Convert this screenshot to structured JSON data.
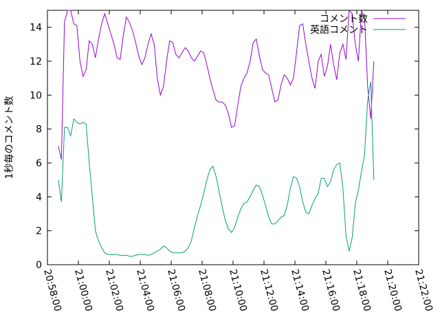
{
  "chart_data": {
    "type": "line",
    "ylabel": "1秒毎のコメント数",
    "ylim": [
      0,
      15
    ],
    "yticks": [
      0,
      2,
      4,
      6,
      8,
      10,
      12,
      14
    ],
    "xlim_minutes": [
      0,
      24
    ],
    "xtick_labels": [
      "20:58:00",
      "21:00:00",
      "21:02:00",
      "21:04:00",
      "21:06:00",
      "21:08:00",
      "21:10:00",
      "21:12:00",
      "21:14:00",
      "21:16:00",
      "21:18:00",
      "21:20:00",
      "21:22:00"
    ],
    "legend_position": "top-right",
    "grid": false,
    "series": [
      {
        "name": "コメント数",
        "color": "#9400d3",
        "points": [
          [
            0.7,
            7.0
          ],
          [
            0.9,
            6.2
          ],
          [
            1.1,
            14.3
          ],
          [
            1.3,
            15.0
          ],
          [
            1.5,
            15.0
          ],
          [
            1.7,
            14.2
          ],
          [
            1.9,
            14.1
          ],
          [
            2.1,
            12.0
          ],
          [
            2.3,
            11.1
          ],
          [
            2.5,
            11.5
          ],
          [
            2.7,
            13.2
          ],
          [
            2.9,
            13.0
          ],
          [
            3.1,
            12.2
          ],
          [
            3.3,
            13.3
          ],
          [
            3.5,
            14.2
          ],
          [
            3.7,
            14.8
          ],
          [
            3.9,
            14.2
          ],
          [
            4.1,
            13.6
          ],
          [
            4.3,
            13.0
          ],
          [
            4.5,
            12.2
          ],
          [
            4.7,
            12.1
          ],
          [
            4.9,
            13.5
          ],
          [
            5.1,
            14.6
          ],
          [
            5.3,
            14.3
          ],
          [
            5.5,
            13.8
          ],
          [
            5.7,
            13.1
          ],
          [
            5.9,
            12.3
          ],
          [
            6.1,
            11.8
          ],
          [
            6.3,
            12.2
          ],
          [
            6.5,
            13.0
          ],
          [
            6.7,
            13.6
          ],
          [
            6.9,
            13.0
          ],
          [
            7.1,
            11.0
          ],
          [
            7.3,
            10.0
          ],
          [
            7.5,
            10.5
          ],
          [
            7.7,
            12.0
          ],
          [
            7.9,
            13.2
          ],
          [
            8.1,
            13.1
          ],
          [
            8.3,
            12.4
          ],
          [
            8.5,
            12.2
          ],
          [
            8.7,
            12.5
          ],
          [
            8.9,
            12.8
          ],
          [
            9.1,
            12.6
          ],
          [
            9.3,
            12.2
          ],
          [
            9.5,
            12.0
          ],
          [
            9.7,
            12.3
          ],
          [
            9.9,
            12.6
          ],
          [
            10.1,
            12.5
          ],
          [
            10.3,
            11.8
          ],
          [
            10.5,
            11.0
          ],
          [
            10.7,
            10.3
          ],
          [
            10.9,
            9.7
          ],
          [
            11.1,
            9.6
          ],
          [
            11.3,
            9.6
          ],
          [
            11.5,
            9.4
          ],
          [
            11.7,
            8.9
          ],
          [
            11.9,
            8.1
          ],
          [
            12.1,
            8.2
          ],
          [
            12.3,
            9.4
          ],
          [
            12.5,
            10.5
          ],
          [
            12.7,
            11.0
          ],
          [
            12.9,
            11.3
          ],
          [
            13.1,
            12.0
          ],
          [
            13.3,
            13.1
          ],
          [
            13.5,
            13.3
          ],
          [
            13.7,
            12.3
          ],
          [
            13.9,
            11.5
          ],
          [
            14.1,
            11.3
          ],
          [
            14.3,
            11.2
          ],
          [
            14.5,
            10.4
          ],
          [
            14.7,
            9.6
          ],
          [
            14.9,
            9.7
          ],
          [
            15.1,
            10.6
          ],
          [
            15.3,
            11.2
          ],
          [
            15.5,
            11.0
          ],
          [
            15.7,
            10.6
          ],
          [
            15.9,
            11.0
          ],
          [
            16.1,
            12.5
          ],
          [
            16.3,
            14.1
          ],
          [
            16.5,
            14.2
          ],
          [
            16.7,
            13.0
          ],
          [
            16.9,
            12.0
          ],
          [
            17.1,
            11.0
          ],
          [
            17.3,
            10.4
          ],
          [
            17.5,
            12.0
          ],
          [
            17.7,
            12.4
          ],
          [
            17.9,
            11.1
          ],
          [
            18.1,
            11.7
          ],
          [
            18.3,
            13.0
          ],
          [
            18.5,
            11.8
          ],
          [
            18.7,
            10.9
          ],
          [
            18.9,
            12.5
          ],
          [
            19.1,
            13.0
          ],
          [
            19.3,
            12.1
          ],
          [
            19.5,
            15.0
          ],
          [
            19.7,
            14.8
          ],
          [
            19.9,
            13.0
          ],
          [
            20.1,
            12.0
          ],
          [
            20.3,
            15.0
          ],
          [
            20.5,
            14.5
          ],
          [
            20.7,
            10.5
          ],
          [
            20.9,
            8.6
          ],
          [
            21.1,
            12.0
          ]
        ]
      },
      {
        "name": "英語コメント",
        "color": "#009e73",
        "points": [
          [
            0.7,
            5.0
          ],
          [
            0.9,
            3.7
          ],
          [
            1.1,
            8.1
          ],
          [
            1.3,
            8.1
          ],
          [
            1.5,
            7.6
          ],
          [
            1.7,
            8.6
          ],
          [
            1.9,
            8.4
          ],
          [
            2.1,
            8.3
          ],
          [
            2.3,
            8.4
          ],
          [
            2.5,
            8.3
          ],
          [
            2.7,
            6.0
          ],
          [
            2.9,
            4.0
          ],
          [
            3.1,
            2.0
          ],
          [
            3.3,
            1.4
          ],
          [
            3.5,
            1.0
          ],
          [
            3.7,
            0.7
          ],
          [
            3.9,
            0.6
          ],
          [
            4.1,
            0.6
          ],
          [
            4.3,
            0.6
          ],
          [
            4.5,
            0.6
          ],
          [
            4.7,
            0.55
          ],
          [
            4.9,
            0.55
          ],
          [
            5.1,
            0.55
          ],
          [
            5.3,
            0.5
          ],
          [
            5.5,
            0.5
          ],
          [
            5.7,
            0.55
          ],
          [
            5.9,
            0.6
          ],
          [
            6.1,
            0.6
          ],
          [
            6.3,
            0.6
          ],
          [
            6.5,
            0.55
          ],
          [
            6.7,
            0.6
          ],
          [
            6.9,
            0.7
          ],
          [
            7.1,
            0.8
          ],
          [
            7.3,
            0.9
          ],
          [
            7.5,
            1.1
          ],
          [
            7.7,
            1.0
          ],
          [
            7.9,
            0.8
          ],
          [
            8.1,
            0.7
          ],
          [
            8.3,
            0.7
          ],
          [
            8.5,
            0.7
          ],
          [
            8.7,
            0.7
          ],
          [
            8.9,
            0.8
          ],
          [
            9.1,
            1.0
          ],
          [
            9.3,
            1.4
          ],
          [
            9.5,
            2.2
          ],
          [
            9.7,
            2.9
          ],
          [
            9.9,
            3.5
          ],
          [
            10.1,
            4.2
          ],
          [
            10.3,
            5.0
          ],
          [
            10.5,
            5.6
          ],
          [
            10.7,
            5.8
          ],
          [
            10.9,
            5.2
          ],
          [
            11.1,
            4.3
          ],
          [
            11.3,
            3.4
          ],
          [
            11.5,
            2.6
          ],
          [
            11.7,
            2.1
          ],
          [
            11.9,
            1.9
          ],
          [
            12.1,
            2.2
          ],
          [
            12.3,
            2.8
          ],
          [
            12.5,
            3.3
          ],
          [
            12.7,
            3.6
          ],
          [
            12.9,
            3.7
          ],
          [
            13.1,
            4.0
          ],
          [
            13.3,
            4.4
          ],
          [
            13.5,
            4.7
          ],
          [
            13.7,
            4.6
          ],
          [
            13.9,
            4.1
          ],
          [
            14.1,
            3.5
          ],
          [
            14.3,
            2.8
          ],
          [
            14.5,
            2.4
          ],
          [
            14.7,
            2.4
          ],
          [
            14.9,
            2.6
          ],
          [
            15.1,
            2.8
          ],
          [
            15.3,
            2.9
          ],
          [
            15.5,
            3.5
          ],
          [
            15.7,
            4.5
          ],
          [
            15.9,
            5.2
          ],
          [
            16.1,
            5.1
          ],
          [
            16.3,
            4.6
          ],
          [
            16.5,
            3.7
          ],
          [
            16.7,
            3.1
          ],
          [
            16.9,
            3.0
          ],
          [
            17.1,
            3.5
          ],
          [
            17.3,
            3.9
          ],
          [
            17.5,
            4.2
          ],
          [
            17.7,
            5.1
          ],
          [
            17.9,
            5.1
          ],
          [
            18.1,
            4.6
          ],
          [
            18.3,
            4.9
          ],
          [
            18.5,
            5.6
          ],
          [
            18.7,
            5.9
          ],
          [
            18.9,
            6.0
          ],
          [
            19.1,
            4.5
          ],
          [
            19.3,
            1.7
          ],
          [
            19.5,
            0.8
          ],
          [
            19.7,
            1.6
          ],
          [
            19.9,
            3.6
          ],
          [
            20.1,
            4.4
          ],
          [
            20.3,
            5.5
          ],
          [
            20.5,
            6.5
          ],
          [
            20.7,
            9.7
          ],
          [
            20.9,
            10.8
          ],
          [
            21.1,
            5.0
          ]
        ]
      }
    ]
  }
}
